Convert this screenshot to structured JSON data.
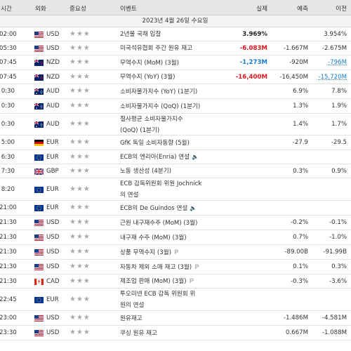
{
  "header": {
    "time": "시간",
    "currency": "외화",
    "importance": "중요성",
    "event": "이벤트",
    "actual": "실제",
    "forecast": "예측",
    "previous": "이전"
  },
  "date_label": "2023년 4월 26일 수요일",
  "stars": "★★★",
  "rows": [
    {
      "time": "02:00",
      "flag": "us",
      "cur": "USD",
      "event1": "2년물 국채 입찰",
      "event2": "",
      "actual": "3.969%",
      "ac": "",
      "fore": "",
      "prev": "3.954%",
      "pc": "",
      "extra": ""
    },
    {
      "time": "05:30",
      "flag": "us",
      "cur": "USD",
      "event1": "미국석유협회 주간 원유 재고",
      "event2": "",
      "actual": "-6.083M",
      "ac": "red",
      "fore": "-1.667M",
      "prev": "-2.675M",
      "pc": "",
      "extra": ""
    },
    {
      "time": "07:45",
      "flag": "nz",
      "cur": "NZD",
      "event1": "무역수지 (MoM) (3월)",
      "event2": "",
      "actual": "-1,273M",
      "ac": "blue",
      "fore": "-920M",
      "prev": "-796M",
      "pc": "blue",
      "extra": ""
    },
    {
      "time": "07:45",
      "flag": "nz",
      "cur": "NZD",
      "event1": "무역수지 (YoY) (3월)",
      "event2": "",
      "actual": "-16,400M",
      "ac": "red",
      "fore": "-16,450M",
      "prev": "-15,720M",
      "pc": "blue",
      "extra": ""
    },
    {
      "time": "0:30",
      "flag": "au",
      "cur": "AUD",
      "event1": "소비자물가지수 (YoY) (1분기)",
      "event2": "",
      "actual": "",
      "ac": "",
      "fore": "6.9%",
      "prev": "7.8%",
      "pc": "",
      "extra": ""
    },
    {
      "time": "0:30",
      "flag": "au",
      "cur": "AUD",
      "event1": "소비자물가지수 (QoQ) (1분기)",
      "event2": "",
      "actual": "",
      "ac": "",
      "fore": "1.3%",
      "prev": "1.9%",
      "pc": "",
      "extra": ""
    },
    {
      "time": "0:30",
      "flag": "au",
      "cur": "AUD",
      "event1": "절사평균 소비자물가지수",
      "event2": "(QoQ) (1분기)",
      "actual": "",
      "ac": "",
      "fore": "1.4%",
      "prev": "1.7%",
      "pc": "",
      "extra": ""
    },
    {
      "time": "5:00",
      "flag": "de",
      "cur": "EUR",
      "event1": "GfK 독일 소비자동향 (5월)",
      "event2": "",
      "actual": "",
      "ac": "",
      "fore": "-27.9",
      "prev": "-29.5",
      "pc": "",
      "extra": ""
    },
    {
      "time": "6:30",
      "flag": "eu",
      "cur": "EUR",
      "event1": "ECB의 엔리아(Enria) 연설",
      "event2": "",
      "actual": "",
      "ac": "",
      "fore": "",
      "prev": "",
      "pc": "",
      "extra": "spk"
    },
    {
      "time": "7:30",
      "flag": "gb",
      "cur": "GBP",
      "event1": "노동 생산성 (4분기)",
      "event2": "",
      "actual": "",
      "ac": "",
      "fore": "0.3%",
      "prev": "0.9%",
      "pc": "",
      "extra": ""
    },
    {
      "time": "8:20",
      "flag": "eu",
      "cur": "EUR",
      "event1": "ECB 감독위원회 위원 Jochnick",
      "event2": "의 연설",
      "actual": "",
      "ac": "",
      "fore": "",
      "prev": "",
      "pc": "",
      "extra": ""
    },
    {
      "time": "21:00",
      "flag": "eu",
      "cur": "EUR",
      "event1": "ECB의 De Guindos 연설",
      "event2": "",
      "actual": "",
      "ac": "",
      "fore": "",
      "prev": "",
      "pc": "",
      "extra": "spk"
    },
    {
      "time": "21:30",
      "flag": "us",
      "cur": "USD",
      "event1": "근원 내구재수주 (MoM) (3월)",
      "event2": "",
      "actual": "",
      "ac": "",
      "fore": "-0.2%",
      "prev": "-0.1%",
      "pc": "",
      "extra": ""
    },
    {
      "time": "21:30",
      "flag": "us",
      "cur": "USD",
      "event1": "내구재 수주 (MoM) (3월)",
      "event2": "",
      "actual": "",
      "ac": "",
      "fore": "0.7%",
      "prev": "-1.0%",
      "pc": "",
      "extra": ""
    },
    {
      "time": "21:30",
      "flag": "us",
      "cur": "USD",
      "event1": "상품 무역수지 (3월)",
      "event2": "",
      "actual": "",
      "ac": "",
      "fore": "-89.00B",
      "prev": "-91.99B",
      "pc": "",
      "extra": "P"
    },
    {
      "time": "21:30",
      "flag": "us",
      "cur": "USD",
      "event1": "자동차 제외 소매 재고 (3월)",
      "event2": "",
      "actual": "",
      "ac": "",
      "fore": "0.1%",
      "prev": "0.3%",
      "pc": "",
      "extra": "P"
    },
    {
      "time": "21:30",
      "flag": "ca",
      "cur": "CAD",
      "event1": "제조업 판매 (MoM) (3월)",
      "event2": "",
      "actual": "",
      "ac": "",
      "fore": "-0.3%",
      "prev": "-3.6%",
      "pc": "",
      "extra": "P"
    },
    {
      "time": "22:45",
      "flag": "eu",
      "cur": "EUR",
      "event1": "투오미넨 ECB 감독 위원회 위",
      "event2": "원의 연설",
      "actual": "",
      "ac": "",
      "fore": "",
      "prev": "",
      "pc": "",
      "extra": ""
    },
    {
      "time": "23:00",
      "flag": "us",
      "cur": "USD",
      "event1": "원유재고",
      "event2": "",
      "actual": "",
      "ac": "",
      "fore": "-1.486M",
      "prev": "-4.581M",
      "pc": "",
      "extra": ""
    },
    {
      "time": "23:30",
      "flag": "us",
      "cur": "USD",
      "event1": "쿠싱 원유 재고",
      "event2": "",
      "actual": "",
      "ac": "",
      "fore": "0.667M",
      "prev": "-1.088M",
      "pc": "",
      "extra": ""
    }
  ]
}
